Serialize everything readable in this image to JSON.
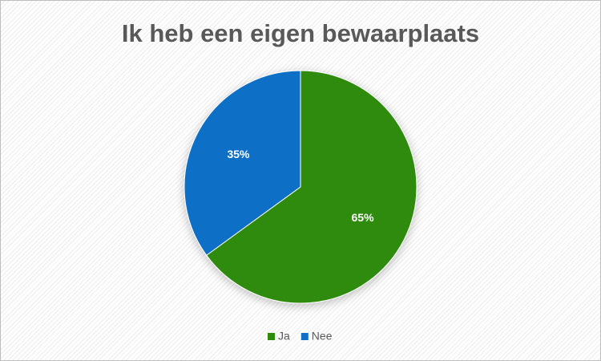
{
  "chart_data": {
    "type": "pie",
    "title": "Ik heb een eigen bewaarplaats",
    "categories": [
      "Ja",
      "Nee"
    ],
    "values": [
      65,
      35
    ],
    "value_labels": [
      "65%",
      "35%"
    ],
    "colors": [
      "#2E8B0C",
      "#0F6FC6"
    ],
    "legend": "bottom"
  }
}
